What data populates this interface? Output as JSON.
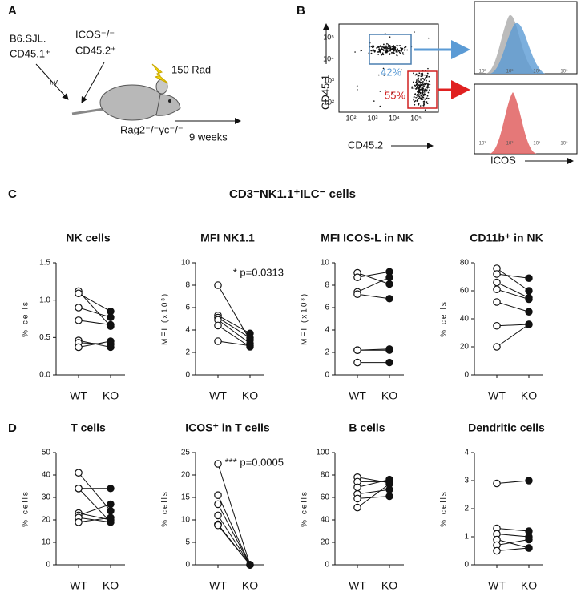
{
  "panel_a": {
    "label": "A",
    "donor1_line1": "B6.SJL.",
    "donor1_line2": "CD45.1⁺",
    "donor2_line1": "ICOS⁻/⁻",
    "donor2_line2": "CD45.2⁺",
    "route": "i.v.",
    "irradiation": "150 Rad",
    "recipient": "Rag2⁻/⁻γc⁻/⁻",
    "duration": "9 weeks"
  },
  "panel_b": {
    "label": "B",
    "y_label": "CD45.1",
    "x_label": "CD45.2",
    "gate1": "42%",
    "gate2": "55%",
    "hist_label": "ICOS",
    "log_ticks": [
      "10²",
      "10³",
      "10⁴",
      "10⁵"
    ]
  },
  "panel_c": {
    "label": "C",
    "title": "CD3⁻NK1.1⁺ILC⁻ cells"
  },
  "panel_d": {
    "label": "D"
  },
  "chart_data": [
    {
      "type": "paired",
      "title": "NK cells",
      "ylabel": "% cells",
      "categories": [
        "WT",
        "KO"
      ],
      "ylim": [
        0,
        1.5
      ],
      "yticks": [
        {
          "value": 0,
          "label": "0.0"
        },
        0.5,
        {
          "value": 1,
          "label": "1.0"
        },
        1.5
      ],
      "pairs": [
        [
          1.12,
          0.65
        ],
        [
          1.09,
          0.85
        ],
        [
          0.9,
          0.77
        ],
        [
          0.73,
          0.67
        ],
        [
          0.46,
          0.37
        ],
        [
          0.43,
          0.41
        ],
        [
          0.37,
          0.45
        ]
      ]
    },
    {
      "type": "paired",
      "title": "MFI NK1.1",
      "ylabel": "MFI (x10³)",
      "annotation": "* p=0.0313",
      "categories": [
        "WT",
        "KO"
      ],
      "ylim": [
        0,
        10
      ],
      "yticks": [
        0,
        2,
        4,
        6,
        8,
        10
      ],
      "pairs": [
        [
          8.0,
          3.1
        ],
        [
          5.3,
          3.7
        ],
        [
          5.1,
          3.3
        ],
        [
          4.9,
          2.8
        ],
        [
          4.4,
          2.5
        ],
        [
          3.0,
          2.6
        ]
      ]
    },
    {
      "type": "paired",
      "title": "MFI ICOS-L in NK",
      "ylabel": "MFI (x10³)",
      "categories": [
        "WT",
        "KO"
      ],
      "ylim": [
        0,
        10
      ],
      "yticks": [
        0,
        2,
        4,
        6,
        8,
        10
      ],
      "pairs": [
        [
          9.1,
          8.1
        ],
        [
          8.7,
          9.2
        ],
        [
          7.4,
          8.7
        ],
        [
          7.2,
          6.8
        ],
        [
          2.2,
          2.3
        ],
        [
          2.2,
          2.2
        ],
        [
          1.1,
          1.1
        ]
      ]
    },
    {
      "type": "paired",
      "title": "CD11b⁺ in NK",
      "ylabel": "% cells",
      "categories": [
        "WT",
        "KO"
      ],
      "ylim": [
        0,
        80
      ],
      "yticks": [
        0,
        20,
        40,
        60,
        80
      ],
      "pairs": [
        [
          76,
          60
        ],
        [
          72,
          69
        ],
        [
          66,
          55
        ],
        [
          61,
          54
        ],
        [
          52,
          45
        ],
        [
          35,
          36
        ],
        [
          20,
          36
        ]
      ]
    },
    {
      "type": "paired",
      "title": "T cells",
      "ylabel": "% cells",
      "categories": [
        "WT",
        "KO"
      ],
      "ylim": [
        0,
        50
      ],
      "yticks": [
        0,
        10,
        20,
        30,
        40,
        50
      ],
      "pairs": [
        [
          41,
          24
        ],
        [
          34,
          34
        ],
        [
          34,
          19
        ],
        [
          23,
          20
        ],
        [
          22,
          27
        ],
        [
          21,
          19
        ],
        [
          19,
          21
        ]
      ]
    },
    {
      "type": "paired",
      "title": "ICOS⁺ in T cells",
      "ylabel": "% cells",
      "annotation": "*** p=0.0005",
      "categories": [
        "WT",
        "KO"
      ],
      "ylim": [
        0,
        25
      ],
      "yticks": [
        0,
        5,
        10,
        15,
        20,
        25
      ],
      "pairs": [
        [
          22.5,
          0
        ],
        [
          15.5,
          0
        ],
        [
          13.5,
          0
        ],
        [
          11,
          0
        ],
        [
          9,
          0
        ],
        [
          9,
          0
        ],
        [
          8.8,
          0
        ]
      ]
    },
    {
      "type": "paired",
      "title": "B cells",
      "ylabel": "% cells",
      "categories": [
        "WT",
        "KO"
      ],
      "ylim": [
        0,
        100
      ],
      "yticks": [
        0,
        20,
        40,
        60,
        80,
        100
      ],
      "pairs": [
        [
          78,
          73
        ],
        [
          74,
          74
        ],
        [
          69,
          76
        ],
        [
          63,
          67
        ],
        [
          59,
          61
        ],
        [
          51,
          72
        ]
      ]
    },
    {
      "type": "paired",
      "title": "Dendritic cells",
      "ylabel": "% cells",
      "categories": [
        "WT",
        "KO"
      ],
      "ylim": [
        0,
        4
      ],
      "yticks": [
        0,
        1,
        2,
        3,
        4
      ],
      "pairs": [
        [
          2.9,
          3.0
        ],
        [
          1.3,
          1.2
        ],
        [
          1.1,
          1.0
        ],
        [
          0.9,
          0.6
        ],
        [
          0.7,
          0.9
        ],
        [
          0.5,
          0.6
        ]
      ]
    }
  ]
}
